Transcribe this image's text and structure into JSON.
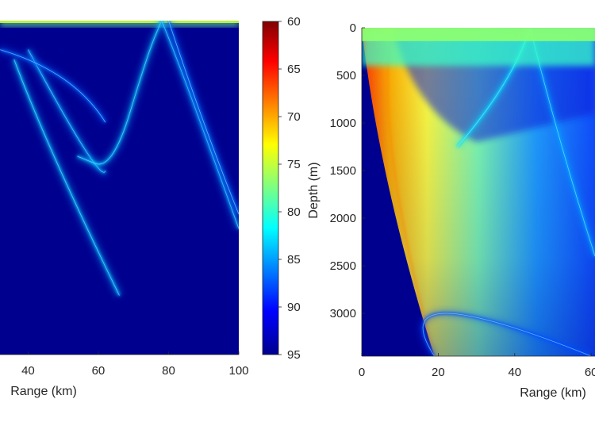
{
  "chart_data": [
    {
      "type": "heatmap",
      "panel": "left-transmission-loss",
      "xlabel": "Range (km)",
      "ylabel": "",
      "xlim": [
        32,
        100
      ],
      "ylim": [
        0,
        3450
      ],
      "xticks": [
        "40",
        "60",
        "80",
        "100"
      ],
      "xtick_values": [
        40,
        60,
        80,
        100
      ],
      "background_level": 95,
      "features": [
        {
          "kind": "surface-duct",
          "x": [
            32,
            100
          ],
          "y": [
            0,
            60
          ],
          "level": 78
        },
        {
          "kind": "ray-arc",
          "points": [
            [
              36,
              400
            ],
            [
              48,
              1450
            ],
            [
              66,
              2840
            ]
          ],
          "level": 84
        },
        {
          "kind": "ray-arc",
          "points": [
            [
              40,
              300
            ],
            [
              56,
              1320
            ],
            [
              62,
              1550
            ]
          ],
          "level": 85
        },
        {
          "kind": "ray-arc",
          "points": [
            [
              54,
              1400
            ],
            [
              64,
              1550
            ],
            [
              74,
              350
            ],
            [
              78,
              0
            ]
          ],
          "level": 84
        },
        {
          "kind": "ray-arc",
          "points": [
            [
              78,
              0
            ],
            [
              86,
              750
            ],
            [
              100,
              2150
            ]
          ],
          "level": 85
        },
        {
          "kind": "ray-arc",
          "points": [
            [
              80,
              0
            ],
            [
              90,
              1050
            ],
            [
              100,
              2000
            ]
          ],
          "level": 87
        },
        {
          "kind": "ray-arc",
          "points": [
            [
              32,
              300
            ],
            [
              50,
              600
            ],
            [
              62,
              1050
            ]
          ],
          "level": 87
        }
      ]
    },
    {
      "type": "colorbar",
      "colormap": "jet-reversed",
      "ticks": [
        "60",
        "65",
        "70",
        "75",
        "80",
        "85",
        "90",
        "95"
      ],
      "tick_values": [
        60,
        65,
        70,
        75,
        80,
        85,
        90,
        95
      ],
      "range": [
        60,
        95
      ],
      "top_color": "#800000",
      "bottom_color": "#00008f"
    },
    {
      "type": "heatmap",
      "panel": "right-transmission-loss",
      "xlabel": "Range (km)",
      "ylabel": "Depth (m)",
      "xlim": [
        0,
        61
      ],
      "ylim": [
        0,
        3450
      ],
      "ydirection": "reverse",
      "xticks": [
        "0",
        "20",
        "40",
        "60"
      ],
      "xtick_values": [
        0,
        20,
        40,
        60
      ],
      "yticks": [
        "0",
        "500",
        "1000",
        "1500",
        "2000",
        "2500",
        "3000"
      ],
      "ytick_values": [
        0,
        500,
        1000,
        1500,
        2000,
        2500,
        3000
      ],
      "background_level": 95,
      "features": [
        {
          "kind": "direct-path-fan",
          "apex": [
            0,
            0
          ],
          "outer": [
            [
              0,
              0
            ],
            [
              3,
              1100
            ],
            [
              10,
              2300
            ],
            [
              19,
              3450
            ]
          ],
          "level_near": 67,
          "level_far": 88
        },
        {
          "kind": "ray-arc",
          "points": [
            [
              19,
              3450
            ],
            [
              22,
              3000
            ],
            [
              60,
              3450
            ]
          ],
          "level": 88
        },
        {
          "kind": "ray-arc",
          "points": [
            [
              25,
              1250
            ],
            [
              37,
              600
            ],
            [
              44,
              0
            ]
          ],
          "level": 83
        },
        {
          "kind": "ray-arc",
          "points": [
            [
              44,
              0
            ],
            [
              52,
              1200
            ],
            [
              61,
              2400
            ]
          ],
          "level": 85
        },
        {
          "kind": "surface-caustics",
          "x": [
            0,
            61
          ],
          "y": [
            0,
            400
          ],
          "level": 80
        }
      ]
    }
  ]
}
